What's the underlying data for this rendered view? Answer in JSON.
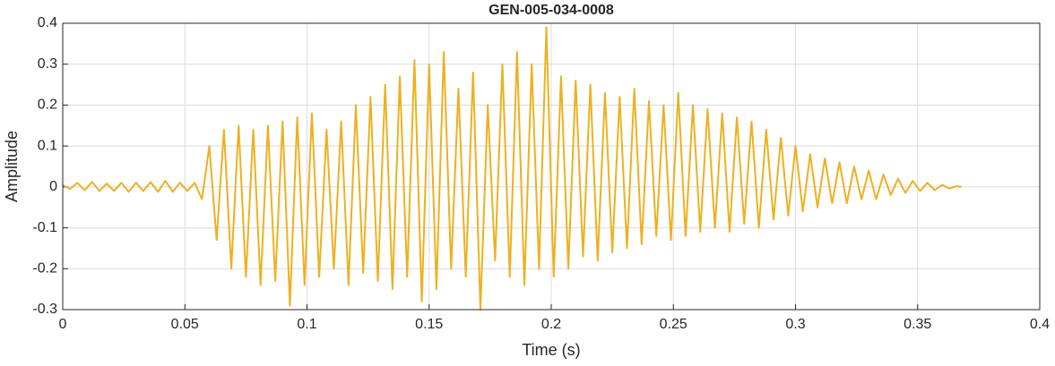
{
  "chart_data": {
    "type": "line",
    "title": "GEN-005-034-0008",
    "xlabel": "Time (s)",
    "ylabel": "Amplitude",
    "xlim": [
      0,
      0.4
    ],
    "xticks": [
      0,
      0.05,
      0.1,
      0.15,
      0.2,
      0.25,
      0.3,
      0.35,
      0.4
    ],
    "ylim": [
      -0.3,
      0.4
    ],
    "yticks": [
      -0.3,
      -0.2,
      -0.1,
      0,
      0.1,
      0.2,
      0.3,
      0.4
    ],
    "grid": true,
    "series": [
      {
        "color": "#EDB120",
        "x": [
          0,
          0.003,
          0.006,
          0.009,
          0.012,
          0.015,
          0.018,
          0.021,
          0.024,
          0.027,
          0.03,
          0.033,
          0.036,
          0.039,
          0.042,
          0.045,
          0.048,
          0.051,
          0.054,
          0.057,
          0.06,
          0.063,
          0.066,
          0.069,
          0.072,
          0.075,
          0.078,
          0.081,
          0.084,
          0.087,
          0.09,
          0.093,
          0.096,
          0.099,
          0.102,
          0.105,
          0.108,
          0.111,
          0.114,
          0.117,
          0.12,
          0.123,
          0.126,
          0.129,
          0.132,
          0.135,
          0.138,
          0.141,
          0.144,
          0.147,
          0.15,
          0.153,
          0.156,
          0.159,
          0.162,
          0.165,
          0.168,
          0.171,
          0.174,
          0.177,
          0.18,
          0.183,
          0.186,
          0.189,
          0.192,
          0.195,
          0.198,
          0.201,
          0.204,
          0.207,
          0.21,
          0.213,
          0.216,
          0.219,
          0.222,
          0.225,
          0.228,
          0.231,
          0.234,
          0.237,
          0.24,
          0.243,
          0.246,
          0.249,
          0.252,
          0.255,
          0.258,
          0.261,
          0.264,
          0.267,
          0.27,
          0.273,
          0.276,
          0.279,
          0.282,
          0.285,
          0.288,
          0.291,
          0.294,
          0.297,
          0.3,
          0.303,
          0.306,
          0.309,
          0.312,
          0.315,
          0.318,
          0.321,
          0.324,
          0.327,
          0.33,
          0.333,
          0.336,
          0.339,
          0.342,
          0.345,
          0.348,
          0.351,
          0.354,
          0.357,
          0.36,
          0.363,
          0.366,
          0.368
        ],
        "values": [
          0.005,
          -0.005,
          0.01,
          -0.008,
          0.012,
          -0.01,
          0.008,
          -0.01,
          0.01,
          -0.012,
          0.01,
          -0.01,
          0.012,
          -0.012,
          0.015,
          -0.012,
          0.01,
          -0.01,
          0.01,
          -0.03,
          0.1,
          -0.13,
          0.14,
          -0.2,
          0.15,
          -0.22,
          0.14,
          -0.24,
          0.15,
          -0.23,
          0.16,
          -0.29,
          0.17,
          -0.24,
          0.18,
          -0.22,
          0.14,
          -0.2,
          0.16,
          -0.24,
          0.2,
          -0.21,
          0.22,
          -0.23,
          0.25,
          -0.25,
          0.27,
          -0.22,
          0.31,
          -0.28,
          0.3,
          -0.25,
          0.33,
          -0.2,
          0.24,
          -0.22,
          0.28,
          -0.3,
          0.2,
          -0.18,
          0.3,
          -0.22,
          0.33,
          -0.24,
          0.3,
          -0.2,
          0.39,
          -0.22,
          0.27,
          -0.2,
          0.26,
          -0.17,
          0.25,
          -0.18,
          0.23,
          -0.16,
          0.22,
          -0.15,
          0.24,
          -0.14,
          0.21,
          -0.12,
          0.2,
          -0.13,
          0.23,
          -0.12,
          0.2,
          -0.11,
          0.19,
          -0.1,
          0.18,
          -0.11,
          0.17,
          -0.09,
          0.16,
          -0.1,
          0.14,
          -0.08,
          0.12,
          -0.07,
          0.1,
          -0.06,
          0.08,
          -0.05,
          0.07,
          -0.04,
          0.06,
          -0.04,
          0.05,
          -0.03,
          0.04,
          -0.03,
          0.03,
          -0.02,
          0.02,
          -0.015,
          0.015,
          -0.01,
          0.01,
          -0.008,
          0.005,
          -0.004,
          0.002,
          0
        ]
      }
    ]
  }
}
